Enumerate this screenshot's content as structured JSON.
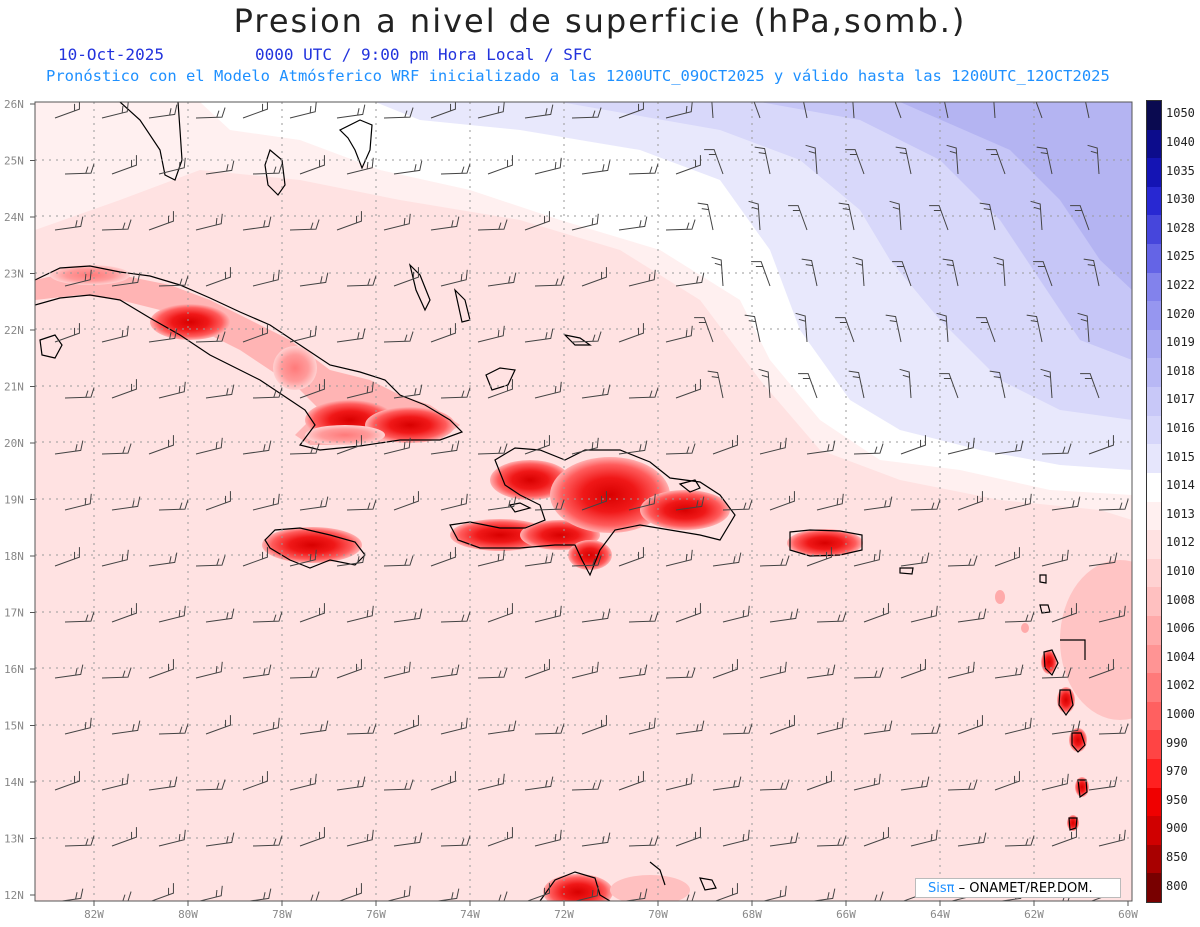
{
  "title": "Presion a nivel de superficie (hPa,somb.)",
  "date": "10-Oct-2025",
  "time": "0000 UTC / 9:00 pm Hora Local / SFC",
  "forecast": "Pronóstico con el Modelo Atmósferico WRF inicializado a las 1200UTC_09OCT2025 y válido hasta las  1200UTC_12OCT2025",
  "lat_labels": [
    "26N",
    "25N",
    "24N",
    "23N",
    "22N",
    "21N",
    "20N",
    "19N",
    "18N",
    "17N",
    "16N",
    "15N",
    "14N",
    "13N",
    "12N"
  ],
  "lon_labels": [
    "82W",
    "80W",
    "78W",
    "76W",
    "74W",
    "72W",
    "70W",
    "68W",
    "66W",
    "64W",
    "62W",
    "60W"
  ],
  "colorbar": {
    "labels": [
      "1050",
      "1040",
      "1035",
      "1030",
      "1028",
      "1025",
      "1022",
      "1020",
      "1019",
      "1018",
      "1017",
      "1016",
      "1015",
      "1014",
      "1013",
      "1012",
      "1010",
      "1008",
      "1006",
      "1004",
      "1002",
      "1000",
      "990",
      "970",
      "950",
      "900",
      "850",
      "800"
    ],
    "colors": [
      "#0a0a50",
      "#0c0c8c",
      "#1414b4",
      "#2828d2",
      "#4646dc",
      "#6464e6",
      "#8282ec",
      "#9696f0",
      "#a8a8f2",
      "#b8b8f5",
      "#c8c8f8",
      "#d6d6fa",
      "#e6e6fc",
      "#ffffff",
      "#fff0f0",
      "#ffe2e2",
      "#ffd2d2",
      "#ffc0c0",
      "#ffaaaa",
      "#ff9494",
      "#ff7a7a",
      "#ff6060",
      "#ff4444",
      "#ff2020",
      "#f00000",
      "#d00000",
      "#a80000",
      "#780000"
    ]
  },
  "credit": {
    "brand": "Sisπ",
    "text": "– ONAMET/REP.DOM."
  }
}
